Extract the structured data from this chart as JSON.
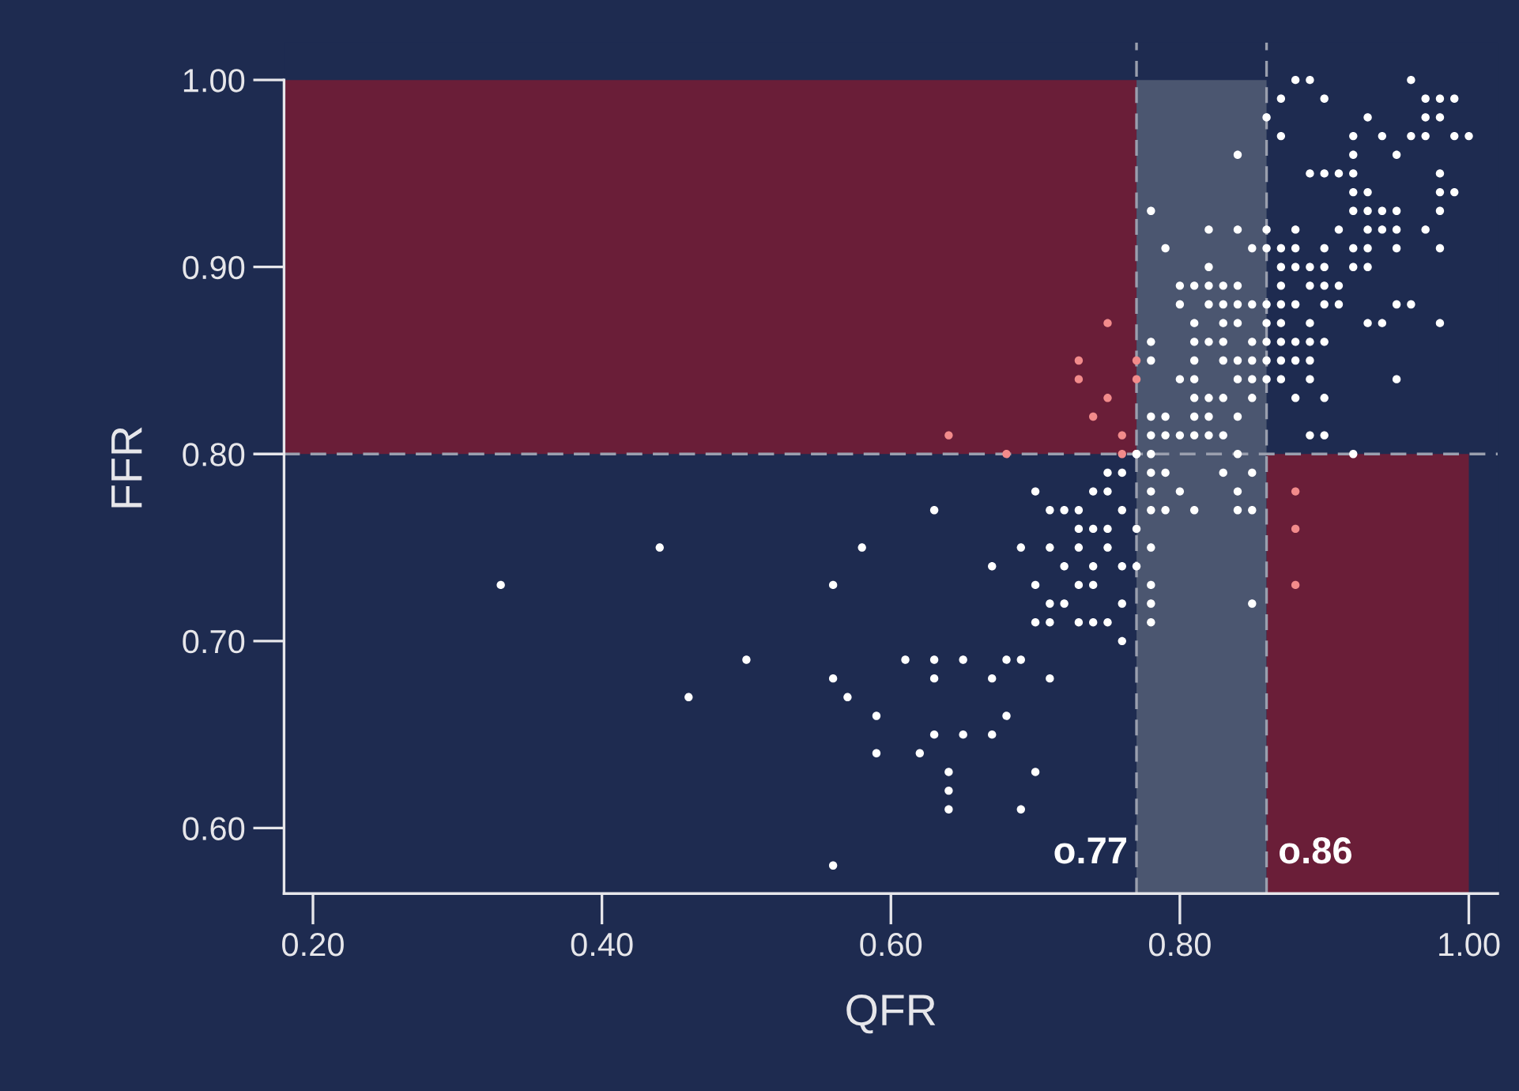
{
  "chart_data": {
    "type": "scatter",
    "xlabel": "QFR",
    "ylabel": "FFR",
    "xlim": [
      0.18,
      1.02
    ],
    "ylim": [
      0.565,
      1.02
    ],
    "xticks": [
      {
        "value": 0.2,
        "label": "0.20"
      },
      {
        "value": 0.4,
        "label": "0.40"
      },
      {
        "value": 0.6,
        "label": "0.60"
      },
      {
        "value": 0.8,
        "label": "0.80"
      },
      {
        "value": 1.0,
        "label": "1.00"
      }
    ],
    "yticks": [
      {
        "value": 0.6,
        "label": "0.60"
      },
      {
        "value": 0.7,
        "label": "0.70"
      },
      {
        "value": 0.8,
        "label": "0.80"
      },
      {
        "value": 0.9,
        "label": "0.90"
      },
      {
        "value": 1.0,
        "label": "1.00"
      }
    ],
    "grid": false,
    "marker": "circle",
    "ref_lines": [
      {
        "axis": "x",
        "value": 0.77,
        "label": "o.77",
        "color": "#9a9fae",
        "line_style": "dashed"
      },
      {
        "axis": "x",
        "value": 0.86,
        "label": "o.86",
        "color": "#9a9fae",
        "line_style": "dashed"
      },
      {
        "axis": "y",
        "value": 0.8,
        "color": "#9a9fae",
        "line_style": "dashed"
      }
    ],
    "bands": [
      {
        "axis": "x",
        "from": 0.77,
        "to": 0.86,
        "color": "#4b5670"
      },
      {
        "axis": "y",
        "from": 0.8,
        "to": 1.0,
        "color": "#6a1e38"
      },
      {
        "axis": "y",
        "from": 0.565,
        "to": 0.8,
        "color": "#6a1e38"
      }
    ],
    "series": [
      {
        "color": "#ffffff",
        "x": [
          0.33,
          0.44,
          0.46,
          0.5,
          0.56,
          0.56,
          0.56,
          0.57,
          0.58,
          0.59,
          0.59,
          0.61,
          0.62,
          0.63,
          0.63,
          0.63,
          0.63,
          0.64,
          0.64,
          0.64,
          0.65,
          0.65,
          0.67,
          0.67,
          0.67,
          0.68,
          0.68,
          0.69,
          0.69,
          0.7,
          0.71,
          0.7,
          0.71,
          0.72,
          0.73,
          0.76,
          0.73,
          0.74,
          0.75,
          0.77,
          0.69,
          0.71,
          0.73,
          0.75,
          0.72,
          0.74,
          0.76,
          0.77,
          0.7,
          0.73,
          0.74,
          0.71,
          0.72,
          0.76,
          0.7,
          0.71,
          0.73,
          0.74,
          0.75,
          0.76,
          0.74,
          0.75,
          0.75,
          0.76,
          0.77,
          0.78,
          0.78,
          0.78,
          0.78,
          0.78,
          0.78,
          0.78,
          0.79,
          0.79,
          0.8,
          0.81,
          0.83,
          0.84,
          0.84,
          0.85,
          0.85,
          0.85,
          0.88,
          0.89,
          0.96,
          0.87,
          0.9,
          0.97,
          0.98,
          0.99,
          0.86,
          0.93,
          0.97,
          0.98,
          0.87,
          0.92,
          0.94,
          0.96,
          0.97,
          0.99,
          1.0,
          0.84,
          0.92,
          0.95,
          0.89,
          0.9,
          0.91,
          0.92,
          0.98,
          0.92,
          0.93,
          0.98,
          0.99,
          0.78,
          0.92,
          0.93,
          0.94,
          0.95,
          0.98,
          0.82,
          0.84,
          0.86,
          0.88,
          0.91,
          0.93,
          0.94,
          0.95,
          0.97,
          0.79,
          0.85,
          0.86,
          0.87,
          0.88,
          0.9,
          0.92,
          0.93,
          0.95,
          0.98,
          0.82,
          0.87,
          0.88,
          0.89,
          0.9,
          0.92,
          0.93,
          0.8,
          0.81,
          0.82,
          0.83,
          0.84,
          0.87,
          0.89,
          0.9,
          0.91,
          0.8,
          0.82,
          0.83,
          0.84,
          0.85,
          0.86,
          0.87,
          0.88,
          0.9,
          0.91,
          0.95,
          0.96,
          0.81,
          0.83,
          0.84,
          0.86,
          0.87,
          0.89,
          0.93,
          0.94,
          0.98,
          0.78,
          0.81,
          0.82,
          0.83,
          0.85,
          0.86,
          0.87,
          0.88,
          0.89,
          0.9,
          0.78,
          0.81,
          0.83,
          0.84,
          0.85,
          0.86,
          0.87,
          0.88,
          0.89,
          0.8,
          0.81,
          0.84,
          0.85,
          0.86,
          0.87,
          0.89,
          0.95,
          0.81,
          0.82,
          0.83,
          0.85,
          0.88,
          0.9,
          0.78,
          0.79,
          0.81,
          0.82,
          0.84,
          0.78,
          0.79,
          0.8,
          0.81,
          0.82,
          0.83,
          0.89,
          0.9,
          0.77,
          0.78,
          0.84,
          0.92
        ],
        "values": [
          0.73,
          0.75,
          0.67,
          0.69,
          0.73,
          0.68,
          0.58,
          0.67,
          0.75,
          0.66,
          0.64,
          0.69,
          0.64,
          0.77,
          0.69,
          0.68,
          0.65,
          0.63,
          0.62,
          0.61,
          0.69,
          0.65,
          0.74,
          0.68,
          0.65,
          0.69,
          0.66,
          0.69,
          0.61,
          0.63,
          0.68,
          0.78,
          0.77,
          0.77,
          0.77,
          0.77,
          0.76,
          0.76,
          0.76,
          0.76,
          0.75,
          0.75,
          0.75,
          0.75,
          0.74,
          0.74,
          0.74,
          0.74,
          0.73,
          0.73,
          0.73,
          0.72,
          0.72,
          0.72,
          0.71,
          0.71,
          0.71,
          0.71,
          0.71,
          0.7,
          0.78,
          0.78,
          0.79,
          0.79,
          0.8,
          0.79,
          0.78,
          0.77,
          0.75,
          0.73,
          0.72,
          0.71,
          0.79,
          0.77,
          0.78,
          0.77,
          0.79,
          0.78,
          0.77,
          0.79,
          0.77,
          0.72,
          1.0,
          1.0,
          1.0,
          0.99,
          0.99,
          0.99,
          0.99,
          0.99,
          0.98,
          0.98,
          0.98,
          0.98,
          0.97,
          0.97,
          0.97,
          0.97,
          0.97,
          0.97,
          0.97,
          0.96,
          0.96,
          0.96,
          0.95,
          0.95,
          0.95,
          0.95,
          0.95,
          0.94,
          0.94,
          0.94,
          0.94,
          0.93,
          0.93,
          0.93,
          0.93,
          0.93,
          0.93,
          0.92,
          0.92,
          0.92,
          0.92,
          0.92,
          0.92,
          0.92,
          0.92,
          0.92,
          0.91,
          0.91,
          0.91,
          0.91,
          0.91,
          0.91,
          0.91,
          0.91,
          0.91,
          0.91,
          0.9,
          0.9,
          0.9,
          0.9,
          0.9,
          0.9,
          0.9,
          0.89,
          0.89,
          0.89,
          0.89,
          0.89,
          0.89,
          0.89,
          0.89,
          0.89,
          0.88,
          0.88,
          0.88,
          0.88,
          0.88,
          0.88,
          0.88,
          0.88,
          0.88,
          0.88,
          0.88,
          0.88,
          0.87,
          0.87,
          0.87,
          0.87,
          0.87,
          0.87,
          0.87,
          0.87,
          0.87,
          0.86,
          0.86,
          0.86,
          0.86,
          0.86,
          0.86,
          0.86,
          0.86,
          0.86,
          0.86,
          0.85,
          0.85,
          0.85,
          0.85,
          0.85,
          0.85,
          0.85,
          0.85,
          0.85,
          0.84,
          0.84,
          0.84,
          0.84,
          0.84,
          0.84,
          0.84,
          0.84,
          0.83,
          0.83,
          0.83,
          0.83,
          0.83,
          0.83,
          0.82,
          0.82,
          0.82,
          0.82,
          0.82,
          0.81,
          0.81,
          0.81,
          0.81,
          0.81,
          0.81,
          0.81,
          0.81,
          0.8,
          0.8,
          0.8,
          0.8
        ]
      },
      {
        "color": "#f28b8b",
        "x": [
          0.64,
          0.68,
          0.73,
          0.73,
          0.74,
          0.75,
          0.75,
          0.76,
          0.76,
          0.77,
          0.77,
          0.88,
          0.88,
          0.88
        ],
        "values": [
          0.81,
          0.8,
          0.85,
          0.84,
          0.82,
          0.87,
          0.83,
          0.81,
          0.8,
          0.85,
          0.84,
          0.78,
          0.76,
          0.73
        ]
      }
    ]
  }
}
